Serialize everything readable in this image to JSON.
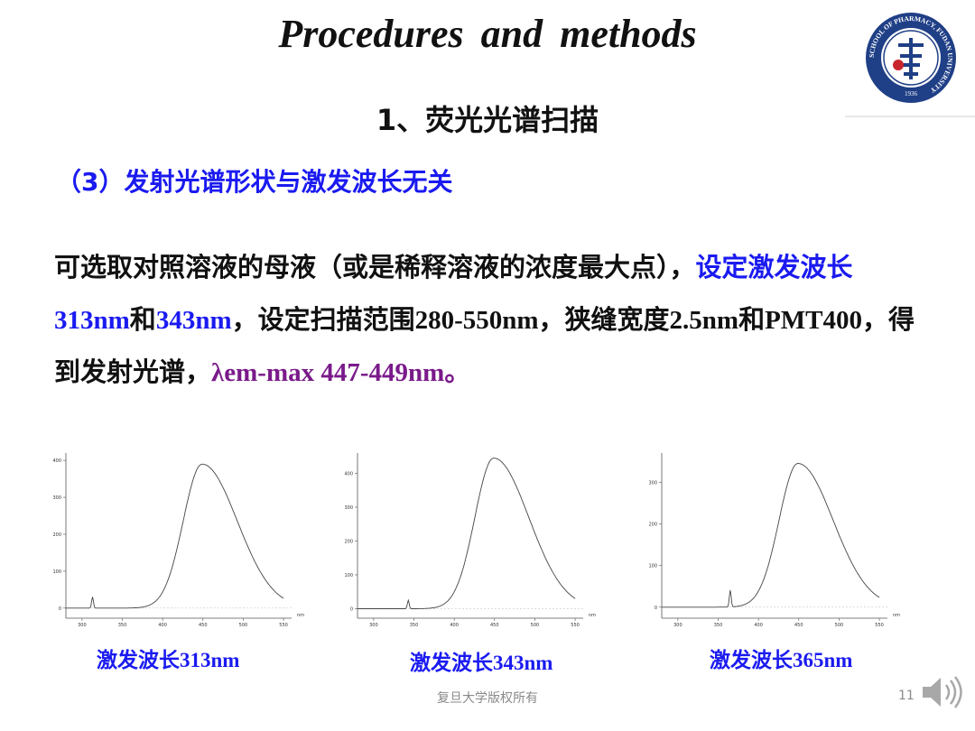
{
  "title": "Procedures  and  methods",
  "subtitle": "1、荧光光谱扫描",
  "subhead": "（3）发射光谱形状与激发波长无关",
  "paragraph": {
    "p1": "可选取对照溶液的母液（或是稀释溶液的浓度最大点），",
    "p2": "设定激发波长313nm",
    "p3": "和",
    "p4": "343nm",
    "p5": "，设定扫描范围280-550nm，狭缝宽度2.5nm和PMT400，得到发射光谱，",
    "p6": "λem-max 447-449nm",
    "p7": "。"
  },
  "logo": {
    "ring_text": "SCHOOL OF PHARMACY, FUDAN UNIVERSITY",
    "year": "1936",
    "colors": {
      "primary": "#1f3f86"
    }
  },
  "chart_data": [
    {
      "type": "line",
      "caption": "激发波长313nm",
      "x_ticks": [
        "300",
        "350",
        "400",
        "450",
        "500",
        "550"
      ],
      "y_ticks": [
        "0",
        "100",
        "200",
        "300",
        "400"
      ],
      "x_unit": "nm",
      "xlim": [
        280,
        560
      ],
      "ylim": [
        -20,
        420
      ],
      "scatter_peak": {
        "x": 313,
        "y": 30
      },
      "emission_peak": {
        "x": 449,
        "y": 390
      },
      "x_end_value": 28
    },
    {
      "type": "line",
      "caption": "激发波长343nm",
      "x_ticks": [
        "300",
        "350",
        "400",
        "450",
        "500",
        "550"
      ],
      "y_ticks": [
        "0",
        "100",
        "200",
        "300",
        "400"
      ],
      "x_unit": "nm",
      "xlim": [
        280,
        560
      ],
      "ylim": [
        -20,
        460
      ],
      "scatter_peak": {
        "x": 343,
        "y": 25
      },
      "emission_peak": {
        "x": 449,
        "y": 445
      },
      "x_end_value": 35
    },
    {
      "type": "line",
      "caption": "激发波长365nm",
      "x_ticks": [
        "300",
        "350",
        "400",
        "450",
        "500",
        "550"
      ],
      "y_ticks": [
        "0",
        "100",
        "200",
        "300"
      ],
      "x_unit": "nm",
      "xlim": [
        280,
        560
      ],
      "ylim": [
        -20,
        370
      ],
      "scatter_peak": {
        "x": 365,
        "y": 40
      },
      "emission_peak": {
        "x": 449,
        "y": 345
      },
      "x_end_value": 30
    }
  ],
  "footer": "复旦大学版权所有",
  "page_number": "11"
}
